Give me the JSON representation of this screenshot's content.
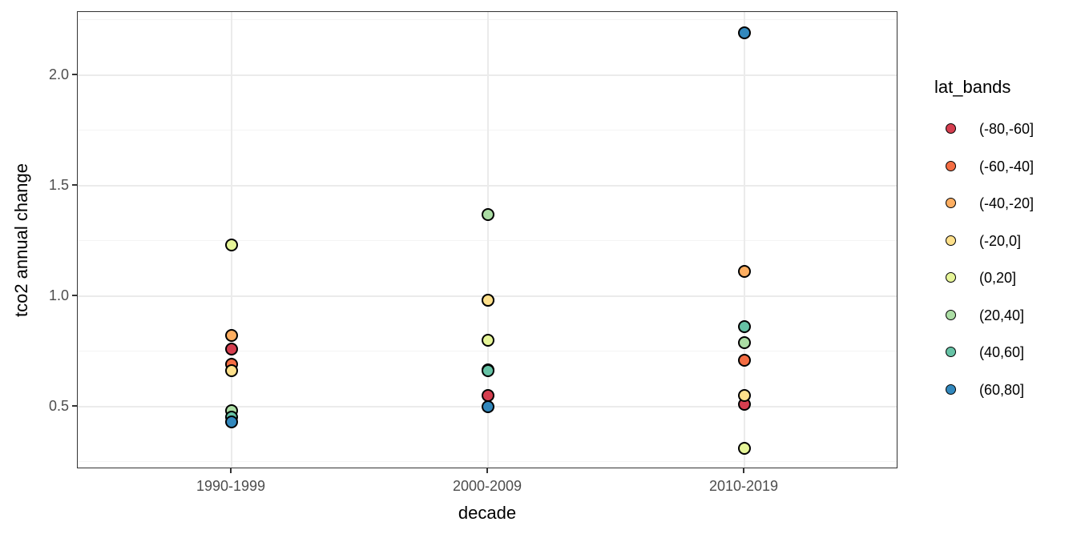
{
  "chart_data": {
    "type": "scatter",
    "title": "",
    "xlabel": "decade",
    "ylabel": "tco2 annual change",
    "categories": [
      "1990-1999",
      "2000-2009",
      "2010-2019"
    ],
    "series": [
      {
        "name": "(-80,-60]",
        "color": "#d53e4f",
        "values": [
          0.76,
          0.55,
          0.51
        ]
      },
      {
        "name": "(-60,-40]",
        "color": "#f46d43",
        "values": [
          0.69,
          0.665,
          0.71
        ]
      },
      {
        "name": "(-40,-20]",
        "color": "#fdae61",
        "values": [
          0.82,
          0.98,
          1.11
        ]
      },
      {
        "name": "(-20,0]",
        "color": "#fee08b",
        "values": [
          0.66,
          0.98,
          0.55
        ]
      },
      {
        "name": "(0,20]",
        "color": "#e6f598",
        "values": [
          1.23,
          0.8,
          0.31
        ]
      },
      {
        "name": "(20,40]",
        "color": "#abdda4",
        "values": [
          0.48,
          1.37,
          0.79
        ]
      },
      {
        "name": "(40,60]",
        "color": "#66c2a5",
        "values": [
          0.45,
          0.66,
          0.86
        ]
      },
      {
        "name": "(60,80]",
        "color": "#3288bd",
        "values": [
          0.43,
          0.5,
          2.19
        ]
      }
    ],
    "ylim": [
      0.216,
      2.285
    ],
    "y_major_ticks": [
      0.5,
      1.0,
      1.5,
      2.0
    ],
    "y_major_labels": [
      "0.5",
      "1.0",
      "1.5",
      "2.0"
    ],
    "y_minor_ticks": [
      0.25,
      0.75,
      1.25,
      1.75,
      2.25
    ],
    "grid": true,
    "legend_position": "right",
    "point_draw_order": "series order; later series drawn on top of earlier ones"
  },
  "legend": {
    "title": "lat_bands",
    "items": [
      {
        "label": "(-80,-60]",
        "color": "#d53e4f"
      },
      {
        "label": "(-60,-40]",
        "color": "#f46d43"
      },
      {
        "label": "(-40,-20]",
        "color": "#fdae61"
      },
      {
        "label": "(-20,0]",
        "color": "#fee08b"
      },
      {
        "label": "(0,20]",
        "color": "#e6f598"
      },
      {
        "label": "(20,40]",
        "color": "#abdda4"
      },
      {
        "label": "(40,60]",
        "color": "#66c2a5"
      },
      {
        "label": "(60,80]",
        "color": "#3288bd"
      }
    ]
  },
  "colors": {
    "background": "#ffffff",
    "panel_border": "#333333",
    "grid_major": "#ebebeb",
    "grid_minor": "#f4f4f4",
    "point_outline": "#000000",
    "tick_label": "#4d4d4d",
    "axis_title": "#000000"
  }
}
